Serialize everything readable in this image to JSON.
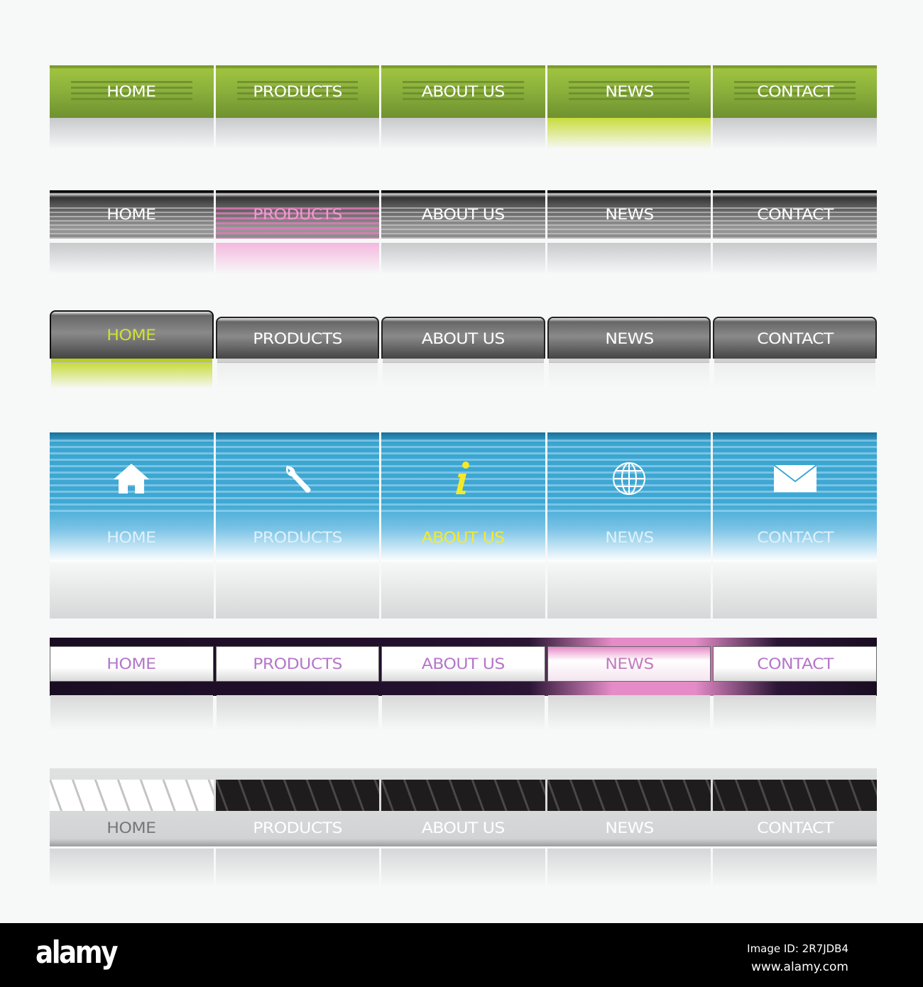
{
  "nav_bars": [
    {
      "style": "green",
      "accent": "#8db23c",
      "active": 3,
      "items": [
        "HOME",
        "PRODUCTS",
        "ABOUT US",
        "NEWS",
        "CONTACT"
      ]
    },
    {
      "style": "gray-striped",
      "accent": "#f09ad0",
      "active": 1,
      "items": [
        "HOME",
        "PRODUCTS",
        "ABOUT US",
        "NEWS",
        "CONTACT"
      ]
    },
    {
      "style": "gray-tabs",
      "accent": "#cfe033",
      "active": 0,
      "items": [
        "HOME",
        "PRODUCTS",
        "ABOUT US",
        "NEWS",
        "CONTACT"
      ]
    },
    {
      "style": "blue-icons",
      "accent": "#f5ea2a",
      "active": 2,
      "items": [
        "HOME",
        "PRODUCTS",
        "ABOUT US",
        "NEWS",
        "CONTACT"
      ],
      "icons": [
        "home-icon",
        "wrench-icon",
        "info-icon",
        "globe-icon",
        "envelope-icon"
      ]
    },
    {
      "style": "purple",
      "accent": "#e58cc8",
      "active": 3,
      "items": [
        "HOME",
        "PRODUCTS",
        "ABOUT US",
        "NEWS",
        "CONTACT"
      ]
    },
    {
      "style": "gray-patterned",
      "accent": "#ffffff",
      "active": 0,
      "items": [
        "HOME",
        "PRODUCTS",
        "ABOUT US",
        "NEWS",
        "CONTACT"
      ]
    }
  ],
  "footer": {
    "logo": "alamy",
    "image_id": "Image ID: 2R7JDB4",
    "site": "www.alamy.com"
  }
}
